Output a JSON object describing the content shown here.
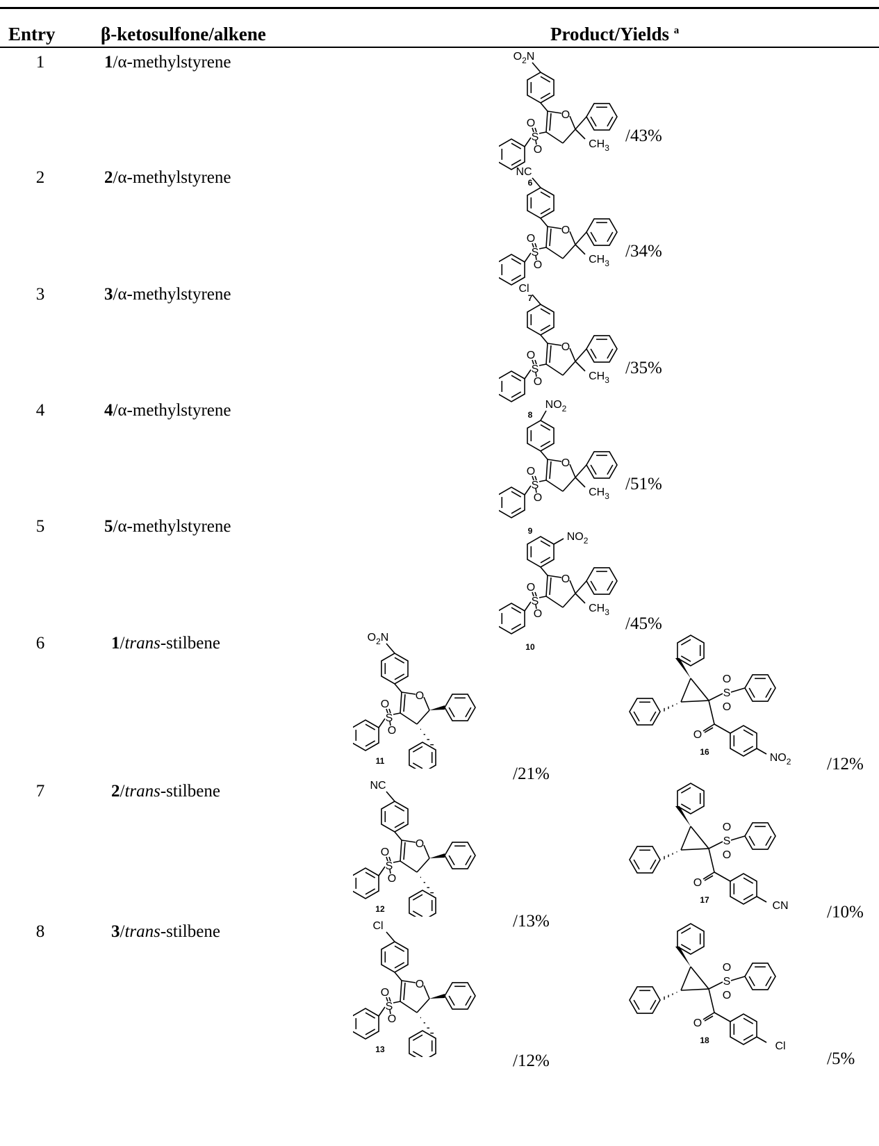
{
  "header": {
    "entry": "Entry",
    "reagent": "β-ketosulfone/alkene",
    "product": "Product/Yields",
    "product_note": "a"
  },
  "rows": [
    {
      "entry": "1",
      "sulfone": "1",
      "alkene": "α-methylstyrene",
      "products": [
        {
          "compound": "6",
          "substituent": "O2N",
          "yield": "/43%"
        }
      ]
    },
    {
      "entry": "2",
      "sulfone": "2",
      "alkene": "α-methylstyrene",
      "products": [
        {
          "compound": "7",
          "substituent": "NC",
          "yield": "/34%"
        }
      ]
    },
    {
      "entry": "3",
      "sulfone": "3",
      "alkene": "α-methylstyrene",
      "products": [
        {
          "compound": "8",
          "substituent": "Cl",
          "yield": "/35%"
        }
      ]
    },
    {
      "entry": "4",
      "sulfone": "4",
      "alkene": "α-methylstyrene",
      "products": [
        {
          "compound": "9",
          "substituent": "NO2",
          "yield": "/51%"
        }
      ]
    },
    {
      "entry": "5",
      "sulfone": "5",
      "alkene": "α-methylstyrene",
      "products": [
        {
          "compound": "10",
          "substituent": "NO2",
          "yield": "/45%"
        }
      ]
    },
    {
      "entry": "6",
      "sulfone": "1",
      "alkene": "trans-stilbene",
      "products": [
        {
          "compound": "11",
          "substituent": "O2N",
          "yield": "/21%"
        },
        {
          "compound": "16",
          "substituent": "NO2",
          "yield": "/12%"
        }
      ]
    },
    {
      "entry": "7",
      "sulfone": "2",
      "alkene": "trans-stilbene",
      "products": [
        {
          "compound": "12",
          "substituent": "NC",
          "yield": "/13%"
        },
        {
          "compound": "17",
          "substituent": "CN",
          "yield": "/10%"
        }
      ]
    },
    {
      "entry": "8",
      "sulfone": "3",
      "alkene": "trans-stilbene",
      "products": [
        {
          "compound": "13",
          "substituent": "Cl",
          "yield": "/12%"
        },
        {
          "compound": "18",
          "substituent": "Cl",
          "yield": "/5%"
        }
      ]
    }
  ],
  "common_labels": {
    "oxygen": "O",
    "sulfur": "S",
    "methyl": "CH3"
  }
}
